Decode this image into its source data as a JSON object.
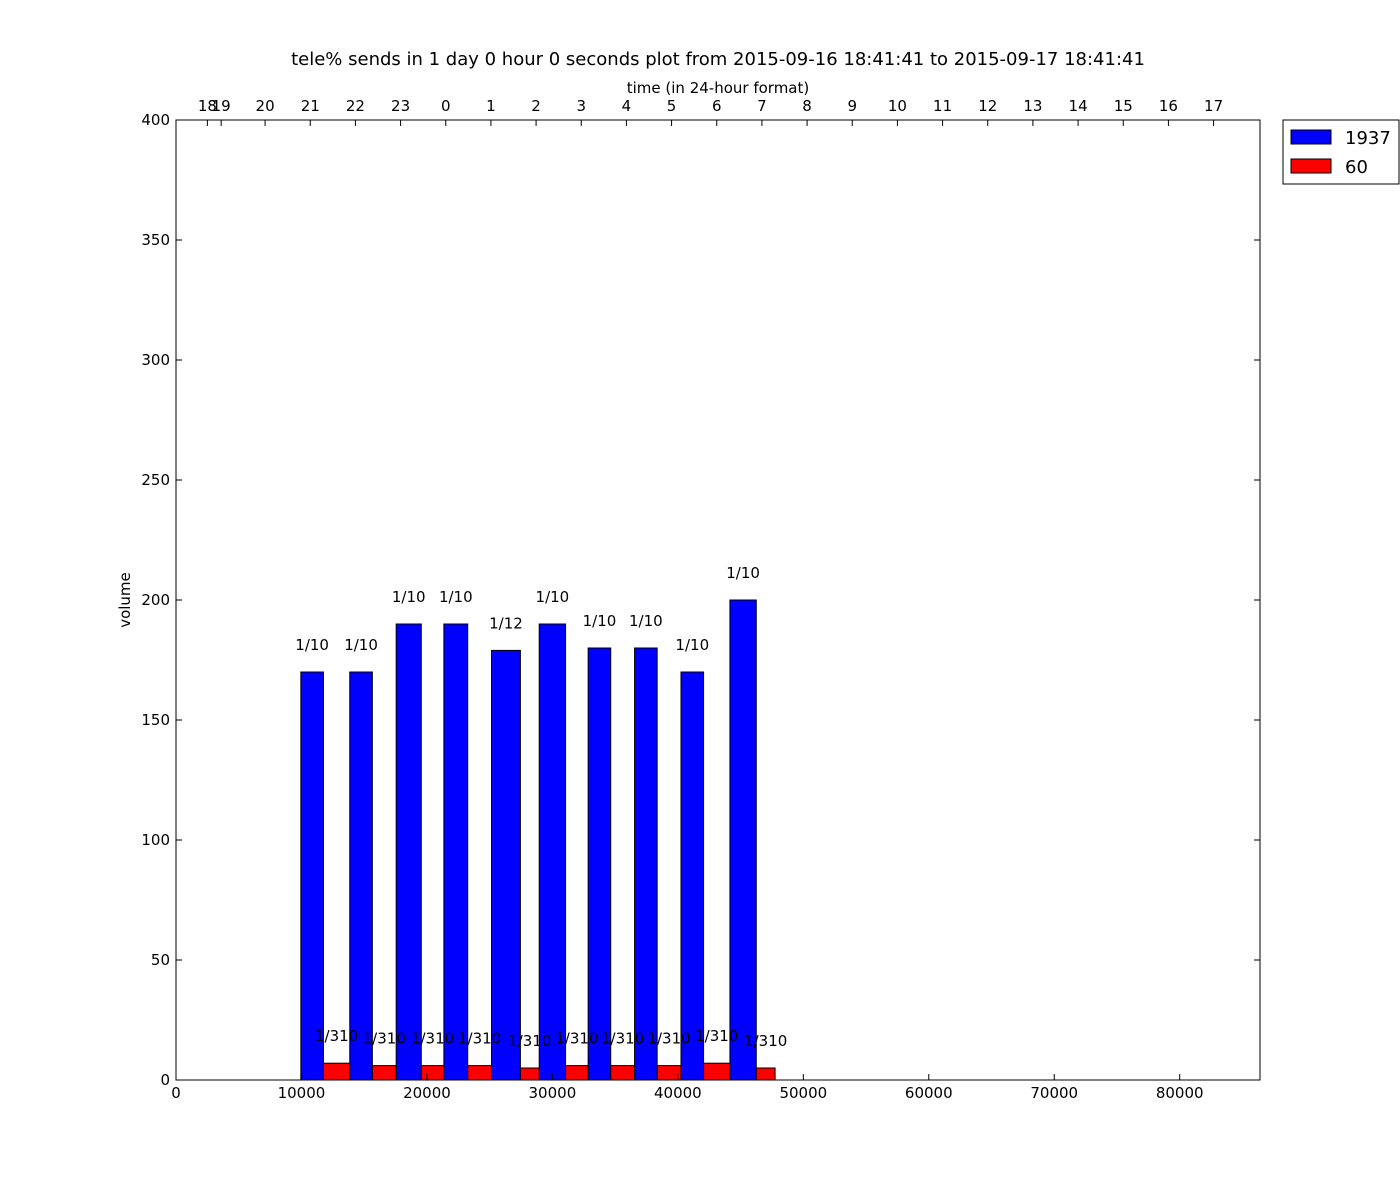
{
  "chart_data": {
    "type": "bar",
    "title": "tele% sends in 1 day 0 hour 0 seconds plot from 2015-09-16 18:41:41 to 2015-09-17 18:41:41",
    "xlabel_top": "time (in 24-hour format)",
    "ylabel": "volume",
    "xlim": [
      0,
      86400
    ],
    "ylim": [
      0,
      400
    ],
    "x_ticks": [
      0,
      10000,
      20000,
      30000,
      40000,
      50000,
      60000,
      70000,
      80000
    ],
    "y_ticks": [
      0,
      50,
      100,
      150,
      200,
      250,
      300,
      350,
      400
    ],
    "top_ticks": [
      {
        "x": 2500,
        "label": "18"
      },
      {
        "x": 3600,
        "label": "19"
      },
      {
        "x": 7100,
        "label": "20"
      },
      {
        "x": 10700,
        "label": "21"
      },
      {
        "x": 14300,
        "label": "22"
      },
      {
        "x": 17900,
        "label": "23"
      },
      {
        "x": 21500,
        "label": "0"
      },
      {
        "x": 25100,
        "label": "1"
      },
      {
        "x": 28700,
        "label": "2"
      },
      {
        "x": 32300,
        "label": "3"
      },
      {
        "x": 35900,
        "label": "4"
      },
      {
        "x": 39500,
        "label": "5"
      },
      {
        "x": 43100,
        "label": "6"
      },
      {
        "x": 46700,
        "label": "7"
      },
      {
        "x": 50300,
        "label": "8"
      },
      {
        "x": 53900,
        "label": "9"
      },
      {
        "x": 57500,
        "label": "10"
      },
      {
        "x": 61100,
        "label": "11"
      },
      {
        "x": 64700,
        "label": "12"
      },
      {
        "x": 68300,
        "label": "13"
      },
      {
        "x": 71900,
        "label": "14"
      },
      {
        "x": 75500,
        "label": "15"
      },
      {
        "x": 79100,
        "label": "16"
      },
      {
        "x": 82700,
        "label": "17"
      }
    ],
    "legend_position": "outside-top-right",
    "series": [
      {
        "name": "1937",
        "color": "#0000ff",
        "bars": [
          {
            "x0": 9950,
            "x1": 11750,
            "value": 170,
            "label": "1/10"
          },
          {
            "x0": 13850,
            "x1": 15650,
            "value": 170,
            "label": "1/10"
          },
          {
            "x0": 17550,
            "x1": 19550,
            "value": 190,
            "label": "1/10"
          },
          {
            "x0": 21350,
            "x1": 23250,
            "value": 190,
            "label": "1/10"
          },
          {
            "x0": 25150,
            "x1": 27450,
            "value": 179,
            "label": "1/12"
          },
          {
            "x0": 28950,
            "x1": 31050,
            "value": 190,
            "label": "1/10"
          },
          {
            "x0": 32850,
            "x1": 34650,
            "value": 180,
            "label": "1/10"
          },
          {
            "x0": 36550,
            "x1": 38350,
            "value": 180,
            "label": "1/10"
          },
          {
            "x0": 40250,
            "x1": 42050,
            "value": 170,
            "label": "1/10"
          },
          {
            "x0": 44150,
            "x1": 46250,
            "value": 200,
            "label": "1/10"
          }
        ]
      },
      {
        "name": "60",
        "color": "#ff0000",
        "bars": [
          {
            "x0": 11750,
            "x1": 13850,
            "value": 7,
            "label": "1/310"
          },
          {
            "x0": 15650,
            "x1": 17550,
            "value": 6,
            "label": "1/310"
          },
          {
            "x0": 19550,
            "x1": 21350,
            "value": 6,
            "label": "1/310"
          },
          {
            "x0": 23250,
            "x1": 25150,
            "value": 6,
            "label": "1/310"
          },
          {
            "x0": 27450,
            "x1": 28950,
            "value": 5,
            "label": "1/310"
          },
          {
            "x0": 31050,
            "x1": 32850,
            "value": 6,
            "label": "1/310"
          },
          {
            "x0": 34650,
            "x1": 36550,
            "value": 6,
            "label": "1/310"
          },
          {
            "x0": 38350,
            "x1": 40250,
            "value": 6,
            "label": "1/310"
          },
          {
            "x0": 42050,
            "x1": 44150,
            "value": 7,
            "label": "1/310"
          },
          {
            "x0": 46250,
            "x1": 47750,
            "value": 5,
            "label": "1/310"
          }
        ]
      }
    ]
  }
}
